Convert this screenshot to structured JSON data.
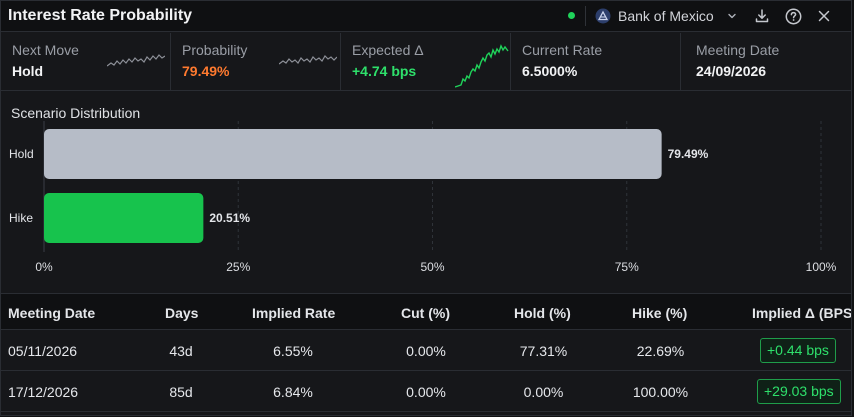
{
  "header": {
    "title": "Interest Rate Probability",
    "bank_select": "Bank of Mexico"
  },
  "kpis": [
    {
      "label": "Next Move",
      "value": "Hold",
      "value_color": "#f1f2f4",
      "spark_color": "#8d9098"
    },
    {
      "label": "Probability",
      "value": "79.49%",
      "value_color": "#ff7a2f",
      "spark_color": "#8d9098"
    },
    {
      "label": "Expected Δ",
      "value": "+4.74 bps",
      "value_color": "#2ee06b",
      "spark_color": "#1fd35a"
    },
    {
      "label": "Current Rate",
      "value": "6.5000%",
      "value_color": "#f1f2f4"
    },
    {
      "label": "Meeting Date",
      "value": "24/09/2026",
      "value_color": "#f1f2f4"
    }
  ],
  "chart_title": "Scenario Distribution",
  "chart_data": {
    "type": "bar",
    "orientation": "horizontal",
    "categories": [
      "Hold",
      "Hike"
    ],
    "values": [
      79.49,
      20.51
    ],
    "value_labels": [
      "79.49%",
      "20.51%"
    ],
    "colors": [
      "#b6bcc7",
      "#17c34d"
    ],
    "xlim": [
      0,
      100
    ],
    "x_ticks": [
      0,
      25,
      50,
      75,
      100
    ],
    "x_tick_labels": [
      "0%",
      "25%",
      "50%",
      "75%",
      "100%"
    ],
    "grid": "vertical dashed"
  },
  "table": {
    "columns": [
      "Meeting Date",
      "Days",
      "Implied Rate",
      "Cut (%)",
      "Hold (%)",
      "Hike (%)",
      "Implied Δ (BPS"
    ],
    "rows": [
      {
        "date": "05/11/2026",
        "days": "43d",
        "implied_rate": "6.55%",
        "cut": "0.00%",
        "hold": "77.31%",
        "hike": "22.69%",
        "delta": "+0.44 bps"
      },
      {
        "date": "17/12/2026",
        "days": "85d",
        "implied_rate": "6.84%",
        "cut": "0.00%",
        "hold": "0.00%",
        "hike": "100.00%",
        "delta": "+29.03 bps"
      }
    ]
  }
}
